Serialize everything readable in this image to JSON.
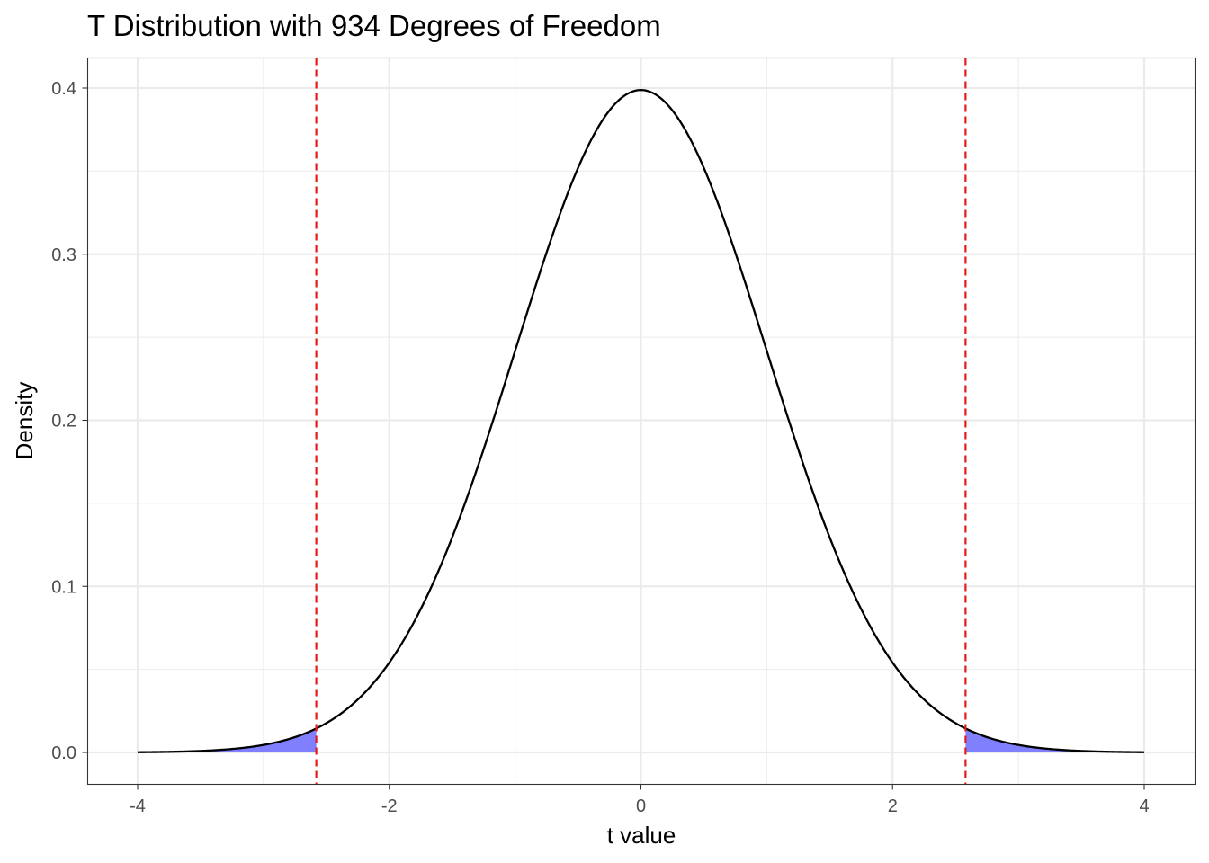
{
  "chart_data": {
    "type": "line",
    "title": "T Distribution with 934 Degrees of Freedom",
    "xlabel": "t value",
    "ylabel": "Density",
    "df": 934,
    "xlim": [
      -4,
      4
    ],
    "ylim": [
      0,
      0.4
    ],
    "x_ticks": [
      -4,
      -2,
      0,
      2,
      4
    ],
    "x_tick_labels": [
      "-4",
      "-2",
      "0",
      "2",
      "4"
    ],
    "y_ticks": [
      0.0,
      0.1,
      0.2,
      0.3,
      0.4
    ],
    "y_tick_labels": [
      "0.0",
      "0.1",
      "0.2",
      "0.3",
      "0.4"
    ],
    "critical_values": [
      -2.58,
      2.58
    ],
    "grid": true,
    "colors": {
      "curve": "#000000",
      "tail_fill": "#8080ff",
      "critical_line": "#e41a1c",
      "grid": "#ebebeb",
      "panel_border": "#333333"
    }
  }
}
